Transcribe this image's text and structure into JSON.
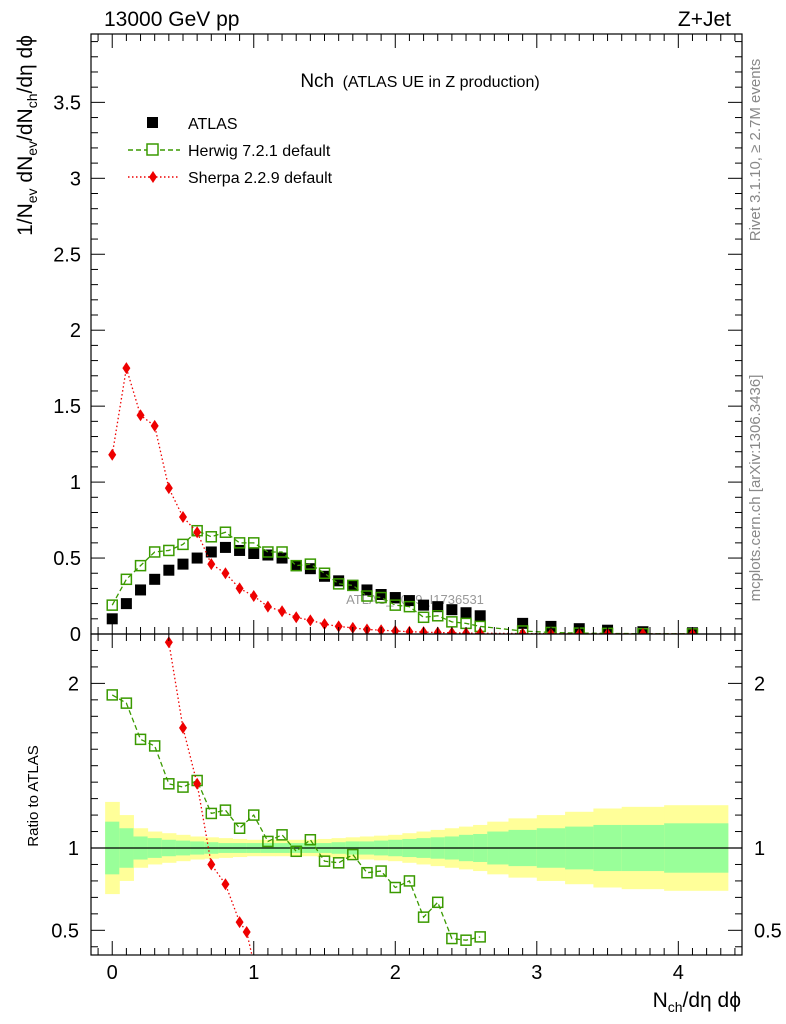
{
  "header": {
    "left": "13000 GeV pp",
    "right": "Z+Jet"
  },
  "side_labels": {
    "rivet": "Rivet 3.1.10, ≥ 2.7M events",
    "mcplots": "mcplots.cern.ch [arXiv:1306.3436]"
  },
  "chart_data": [
    {
      "type": "scatter",
      "title_main": "Nch",
      "title_sub": "(ATLAS UE in Z production)",
      "watermark": "ATLAS_2019_I1736531",
      "xlabel": {
        "base": "N",
        "sub": "ch",
        "rest": "/dη dϕ"
      },
      "ylabel": {
        "parts": [
          {
            "t": "1/N",
            "sub": false
          },
          {
            "t": "ev",
            "sub": true
          },
          {
            "t": " dN",
            "sub": false
          },
          {
            "t": "ev",
            "sub": true
          },
          {
            "t": "/dN",
            "sub": false
          },
          {
            "t": "ch",
            "sub": true
          },
          {
            "t": "/dη dϕ",
            "sub": false
          }
        ]
      },
      "xlim": [
        -0.15,
        4.45
      ],
      "ylim": [
        0,
        3.95
      ],
      "y_ticks": [
        0,
        0.5,
        1,
        1.5,
        2,
        2.5,
        3,
        3.5
      ],
      "y_tick_labels": [
        "0",
        "0.5",
        "1",
        "1.5",
        "2",
        "2.5",
        "3",
        "3.5"
      ],
      "legend_position": "top-left",
      "series": [
        {
          "name": "ATLAS",
          "marker": "square-filled",
          "color": "#000000",
          "x": [
            0.0,
            0.1,
            0.2,
            0.3,
            0.4,
            0.5,
            0.6,
            0.7,
            0.8,
            0.9,
            1.0,
            1.1,
            1.2,
            1.3,
            1.4,
            1.5,
            1.6,
            1.7,
            1.8,
            1.9,
            2.0,
            2.1,
            2.2,
            2.3,
            2.4,
            2.5,
            2.6,
            2.9,
            3.1,
            3.3,
            3.5,
            3.75,
            4.1
          ],
          "y": [
            0.1,
            0.2,
            0.29,
            0.36,
            0.42,
            0.46,
            0.5,
            0.54,
            0.57,
            0.55,
            0.53,
            0.52,
            0.5,
            0.45,
            0.43,
            0.38,
            0.35,
            0.32,
            0.29,
            0.26,
            0.24,
            0.22,
            0.19,
            0.18,
            0.16,
            0.14,
            0.12,
            0.07,
            0.05,
            0.035,
            0.025,
            0.015,
            0.008
          ]
        },
        {
          "name": "Herwig 7.2.1 default",
          "marker": "square-open",
          "color": "#3a9a00",
          "line": "dashed",
          "x": [
            0.0,
            0.1,
            0.2,
            0.3,
            0.4,
            0.5,
            0.6,
            0.7,
            0.8,
            0.9,
            1.0,
            1.1,
            1.2,
            1.3,
            1.4,
            1.5,
            1.6,
            1.7,
            1.8,
            1.9,
            2.0,
            2.1,
            2.2,
            2.3,
            2.4,
            2.5,
            2.6,
            2.9,
            3.1,
            3.3,
            3.5,
            3.75,
            4.1
          ],
          "y": [
            0.19,
            0.36,
            0.45,
            0.54,
            0.55,
            0.59,
            0.68,
            0.64,
            0.67,
            0.6,
            0.6,
            0.54,
            0.54,
            0.45,
            0.46,
            0.4,
            0.33,
            0.32,
            0.25,
            0.24,
            0.19,
            0.18,
            0.11,
            0.12,
            0.08,
            0.07,
            0.05,
            0.02,
            0.01,
            0.006,
            0.004,
            0.002,
            0.001
          ]
        },
        {
          "name": "Sherpa 2.2.9 default",
          "marker": "diamond",
          "color": "#ee0000",
          "line": "dotted",
          "x": [
            0.0,
            0.1,
            0.2,
            0.3,
            0.4,
            0.5,
            0.6,
            0.7,
            0.8,
            0.9,
            1.0,
            1.1,
            1.2,
            1.3,
            1.4,
            1.5,
            1.6,
            1.7,
            1.8,
            1.9,
            2.0,
            2.1,
            2.2,
            2.3,
            2.4,
            2.5,
            2.6,
            2.9,
            3.1,
            3.3,
            3.5,
            3.75,
            4.1
          ],
          "y": [
            1.18,
            1.75,
            1.44,
            1.37,
            0.96,
            0.77,
            0.67,
            0.46,
            0.4,
            0.3,
            0.25,
            0.18,
            0.15,
            0.11,
            0.09,
            0.065,
            0.05,
            0.04,
            0.03,
            0.025,
            0.02,
            0.015,
            0.012,
            0.01,
            0.008,
            0.006,
            0.005,
            0.003,
            0.002,
            0.001,
            0.001,
            0.0005,
            0.0003
          ]
        }
      ]
    },
    {
      "type": "line",
      "ylabel": "Ratio to ATLAS",
      "xlim": [
        -0.15,
        4.45
      ],
      "ylim": [
        0.35,
        2.3
      ],
      "x_ticks": [
        0,
        1,
        2,
        3,
        4
      ],
      "x_tick_labels": [
        "0",
        "1",
        "2",
        "3",
        "4"
      ],
      "y_ticks": [
        0.5,
        1,
        2
      ],
      "y_tick_labels": [
        "0.5",
        "1",
        "2"
      ],
      "bands": {
        "bin_edges": [
          -0.05,
          0.05,
          0.15,
          0.25,
          0.35,
          0.45,
          0.55,
          0.65,
          0.75,
          0.85,
          0.95,
          1.05,
          1.15,
          1.25,
          1.35,
          1.45,
          1.55,
          1.65,
          1.75,
          1.85,
          1.95,
          2.05,
          2.15,
          2.25,
          2.35,
          2.45,
          2.55,
          2.65,
          2.8,
          3.0,
          3.2,
          3.4,
          3.6,
          3.9,
          4.35
        ],
        "yellow_halfwidth": [
          0.28,
          0.2,
          0.12,
          0.1,
          0.09,
          0.08,
          0.07,
          0.065,
          0.06,
          0.055,
          0.05,
          0.05,
          0.05,
          0.05,
          0.05,
          0.055,
          0.06,
          0.065,
          0.07,
          0.075,
          0.08,
          0.09,
          0.1,
          0.11,
          0.12,
          0.13,
          0.14,
          0.16,
          0.18,
          0.2,
          0.22,
          0.24,
          0.25,
          0.26
        ],
        "green_halfwidth": [
          0.16,
          0.12,
          0.07,
          0.06,
          0.05,
          0.045,
          0.04,
          0.035,
          0.03,
          0.03,
          0.03,
          0.03,
          0.03,
          0.03,
          0.03,
          0.03,
          0.035,
          0.04,
          0.04,
          0.045,
          0.05,
          0.055,
          0.06,
          0.065,
          0.07,
          0.08,
          0.085,
          0.1,
          0.11,
          0.12,
          0.13,
          0.14,
          0.14,
          0.15
        ]
      },
      "series": [
        {
          "name": "Herwig 7.2.1 default",
          "color": "#3a9a00",
          "x": [
            0.0,
            0.1,
            0.2,
            0.3,
            0.4,
            0.5,
            0.6,
            0.7,
            0.8,
            0.9,
            1.0,
            1.1,
            1.2,
            1.3,
            1.4,
            1.5,
            1.6,
            1.7,
            1.8,
            1.9,
            2.0,
            2.1,
            2.2,
            2.3,
            2.4,
            2.5,
            2.6
          ],
          "y": [
            1.93,
            1.88,
            1.66,
            1.62,
            1.39,
            1.37,
            1.41,
            1.21,
            1.23,
            1.12,
            1.2,
            1.04,
            1.08,
            0.98,
            1.05,
            0.92,
            0.91,
            0.96,
            0.85,
            0.86,
            0.76,
            0.8,
            0.58,
            0.67,
            0.45,
            0.44,
            0.46
          ]
        },
        {
          "name": "Sherpa 2.2.9 default",
          "color": "#ee0000",
          "x": [
            0.4,
            0.5,
            0.6,
            0.7,
            0.8,
            0.9,
            0.95,
            1.0
          ],
          "y": [
            2.25,
            1.73,
            1.39,
            0.9,
            0.78,
            0.55,
            0.49,
            0.3
          ]
        }
      ]
    }
  ]
}
